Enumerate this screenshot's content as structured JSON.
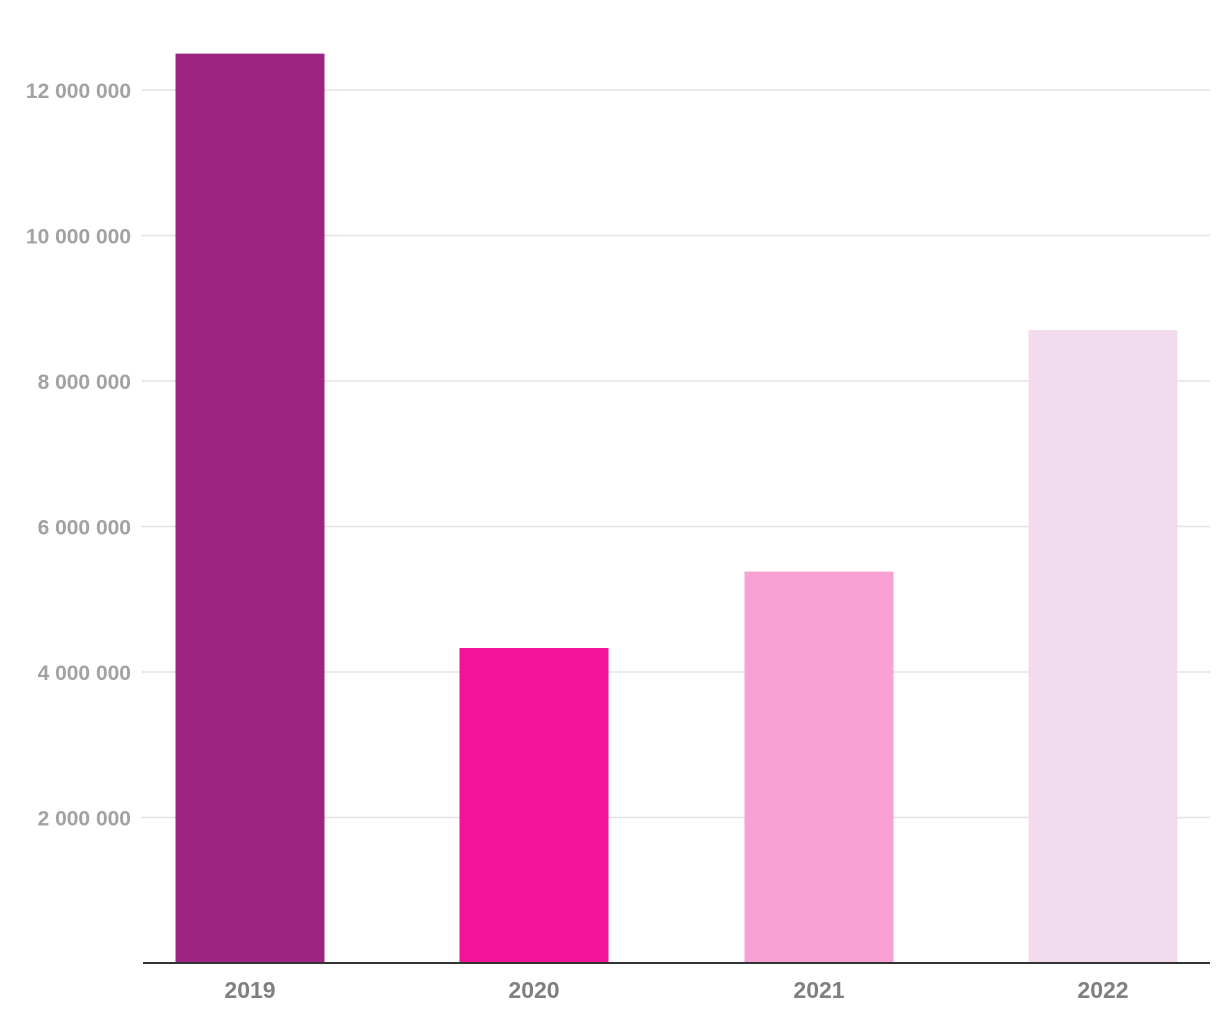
{
  "chart_data": {
    "type": "bar",
    "title": "",
    "xlabel": "",
    "ylabel": "",
    "categories": [
      "2019",
      "2020",
      "2021",
      "2022"
    ],
    "values": [
      12500000,
      4330000,
      5380000,
      8700000
    ],
    "bar_colors": [
      "#9c2583",
      "#f4129a",
      "#f9a0d4",
      "#f2dbed"
    ],
    "ylim": [
      0,
      12000000
    ],
    "yticks": [
      2000000,
      4000000,
      6000000,
      8000000,
      10000000,
      12000000
    ],
    "ytick_labels": [
      "2 000 000",
      "4 000 000",
      "6 000 000",
      "8 000 000",
      "10 000 000",
      "12 000 000"
    ],
    "grid": true,
    "legend": "none"
  },
  "colors": {
    "grid": "#e3e3e3",
    "baseline": "#333333",
    "y_tick_text": "#a2a2a2",
    "x_tick_text": "#7f7f7f"
  }
}
